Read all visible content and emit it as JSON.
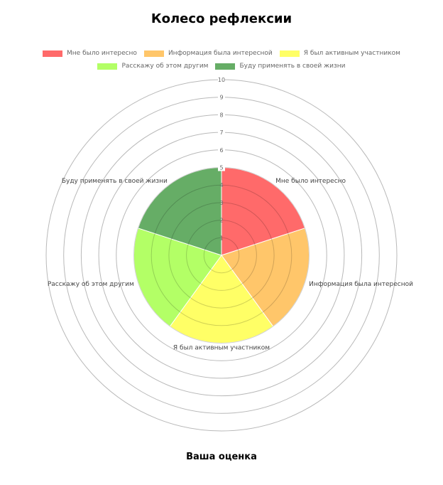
{
  "title": "Колесо рефлексии",
  "footer": "Ваша оценка",
  "legend": [
    {
      "label": "Мне было интересно",
      "color": "#ff6a6a"
    },
    {
      "label": "Информация была интересной",
      "color": "#ffc66a"
    },
    {
      "label": "Я был активным участником",
      "color": "#ffff66"
    },
    {
      "label": "Расскажу об этом другим",
      "color": "#b3ff66"
    },
    {
      "label": "Буду применять в своей жизни",
      "color": "#66ad66"
    }
  ],
  "chart_data": {
    "type": "polarArea",
    "title": "Колесо рефлексии",
    "xlabel": "Ваша оценка",
    "categories": [
      "Мне было интересно",
      "Информация была интересной",
      "Я был активным участником",
      "Расскажу об этом другим",
      "Буду применять в своей жизни"
    ],
    "values": [
      5,
      5,
      5,
      5,
      5
    ],
    "colors": [
      "#ff6a6a",
      "#ffc66a",
      "#ffff66",
      "#b3ff66",
      "#66ad66"
    ],
    "rlim": [
      0,
      10
    ],
    "ticks": [
      "1",
      "2",
      "3",
      "4",
      "5",
      "6",
      "7",
      "8",
      "9",
      "10"
    ],
    "legend_position": "top"
  }
}
